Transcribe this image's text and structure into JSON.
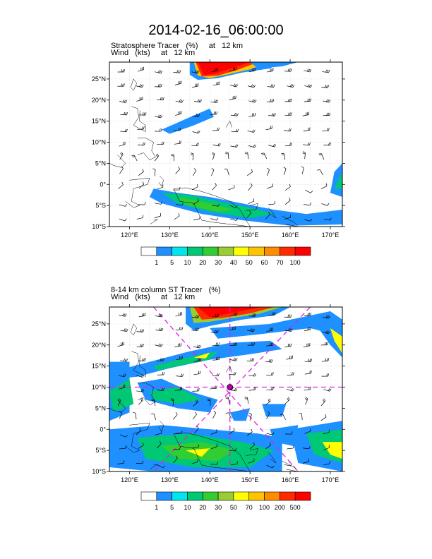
{
  "title": "2014-02-16_06:00:00",
  "panels": [
    {
      "line1": "Stratosphere Tracer   (%)     at   12 km",
      "line2": "Wind   (kts)     at   12 km",
      "colorbar_labels": [
        "1",
        "5",
        "10",
        "20",
        "30",
        "40",
        "50",
        "60",
        "70",
        "100"
      ],
      "colorbar_colors": [
        "#ffffff",
        "#1e90ff",
        "#00e5ee",
        "#00c874",
        "#32cd32",
        "#9acd32",
        "#ffff00",
        "#ffc400",
        "#ff8c00",
        "#ff2a00",
        "#ff0000"
      ]
    },
    {
      "line1": "8-14 km column ST Tracer   (%)",
      "line2": "Wind   (kts)     at   12 km",
      "colorbar_labels": [
        "1",
        "5",
        "10",
        "20",
        "30",
        "50",
        "70",
        "100",
        "200",
        "500"
      ],
      "colorbar_colors": [
        "#ffffff",
        "#1e90ff",
        "#00e5ee",
        "#00c874",
        "#32cd32",
        "#9acd32",
        "#ffff00",
        "#ffc400",
        "#ff8c00",
        "#ff2a00",
        "#ff0000"
      ]
    }
  ],
  "map": {
    "lon_range": [
      115,
      173
    ],
    "lat_range": [
      -10,
      29
    ],
    "lon_ticks": [
      "120°E",
      "130°E",
      "140°E",
      "150°E",
      "160°E",
      "170°E"
    ],
    "lat_ticks": [
      "10°S",
      "5°S",
      "0°",
      "5°N",
      "10°N",
      "15°N",
      "20°N",
      "25°N"
    ],
    "lon_tick_values": [
      120,
      130,
      140,
      150,
      160,
      170
    ],
    "lat_tick_values": [
      -10,
      -5,
      0,
      5,
      10,
      15,
      20,
      25
    ]
  }
}
